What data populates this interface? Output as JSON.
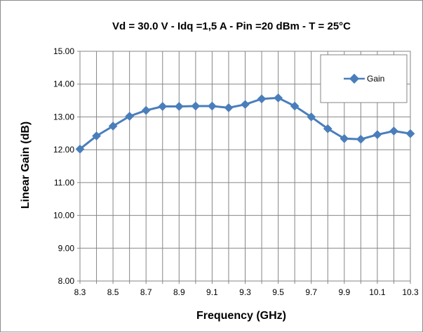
{
  "chart_data": {
    "type": "line",
    "title": "Vd = 30.0 V - Idq =1,5 A - Pin =20 dBm - T = 25°C",
    "xlabel": "Frequency (GHz)",
    "ylabel": "Linear Gain (dB)",
    "xlim": [
      8.3,
      10.3
    ],
    "ylim": [
      8.0,
      15.0
    ],
    "x_ticks": [
      "8.3",
      "8.5",
      "8.7",
      "8.9",
      "9.1",
      "9.3",
      "9.5",
      "9.7",
      "9.9",
      "10.1",
      "10.3"
    ],
    "y_ticks": [
      "8.00",
      "9.00",
      "10.00",
      "11.00",
      "12.00",
      "13.00",
      "14.00",
      "15.00"
    ],
    "grid": true,
    "legend_position": "top-right",
    "series": [
      {
        "name": "Gain",
        "color": "#4a7ebb",
        "x": [
          8.3,
          8.4,
          8.5,
          8.6,
          8.7,
          8.8,
          8.9,
          9.0,
          9.1,
          9.2,
          9.3,
          9.4,
          9.5,
          9.6,
          9.7,
          9.8,
          9.9,
          10.0,
          10.1,
          10.2,
          10.3
        ],
        "y": [
          12.02,
          12.42,
          12.72,
          13.02,
          13.2,
          13.32,
          13.32,
          13.33,
          13.33,
          13.28,
          13.38,
          13.55,
          13.58,
          13.33,
          13.0,
          12.64,
          12.34,
          12.32,
          12.46,
          12.57,
          12.49
        ]
      }
    ]
  }
}
